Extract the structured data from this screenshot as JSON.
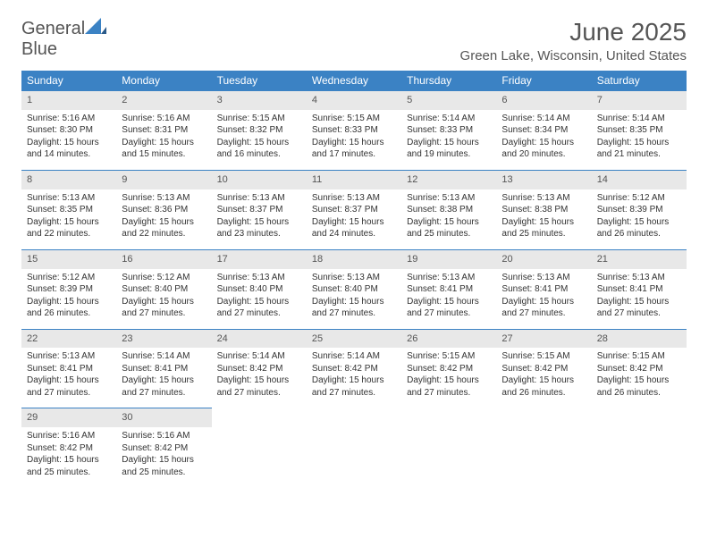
{
  "logo": {
    "text_general": "General",
    "text_blue": "Blue"
  },
  "title": "June 2025",
  "location": "Green Lake, Wisconsin, United States",
  "colors": {
    "header_bg": "#3b82c4",
    "header_fg": "#ffffff",
    "daynum_bg": "#e8e8e8",
    "text": "#333333",
    "page_bg": "#ffffff"
  },
  "weekdays": [
    "Sunday",
    "Monday",
    "Tuesday",
    "Wednesday",
    "Thursday",
    "Friday",
    "Saturday"
  ],
  "weeks": [
    [
      {
        "n": "1",
        "sr": "5:16 AM",
        "ss": "8:30 PM",
        "dl": "15 hours and 14 minutes."
      },
      {
        "n": "2",
        "sr": "5:16 AM",
        "ss": "8:31 PM",
        "dl": "15 hours and 15 minutes."
      },
      {
        "n": "3",
        "sr": "5:15 AM",
        "ss": "8:32 PM",
        "dl": "15 hours and 16 minutes."
      },
      {
        "n": "4",
        "sr": "5:15 AM",
        "ss": "8:33 PM",
        "dl": "15 hours and 17 minutes."
      },
      {
        "n": "5",
        "sr": "5:14 AM",
        "ss": "8:33 PM",
        "dl": "15 hours and 19 minutes."
      },
      {
        "n": "6",
        "sr": "5:14 AM",
        "ss": "8:34 PM",
        "dl": "15 hours and 20 minutes."
      },
      {
        "n": "7",
        "sr": "5:14 AM",
        "ss": "8:35 PM",
        "dl": "15 hours and 21 minutes."
      }
    ],
    [
      {
        "n": "8",
        "sr": "5:13 AM",
        "ss": "8:35 PM",
        "dl": "15 hours and 22 minutes."
      },
      {
        "n": "9",
        "sr": "5:13 AM",
        "ss": "8:36 PM",
        "dl": "15 hours and 22 minutes."
      },
      {
        "n": "10",
        "sr": "5:13 AM",
        "ss": "8:37 PM",
        "dl": "15 hours and 23 minutes."
      },
      {
        "n": "11",
        "sr": "5:13 AM",
        "ss": "8:37 PM",
        "dl": "15 hours and 24 minutes."
      },
      {
        "n": "12",
        "sr": "5:13 AM",
        "ss": "8:38 PM",
        "dl": "15 hours and 25 minutes."
      },
      {
        "n": "13",
        "sr": "5:13 AM",
        "ss": "8:38 PM",
        "dl": "15 hours and 25 minutes."
      },
      {
        "n": "14",
        "sr": "5:12 AM",
        "ss": "8:39 PM",
        "dl": "15 hours and 26 minutes."
      }
    ],
    [
      {
        "n": "15",
        "sr": "5:12 AM",
        "ss": "8:39 PM",
        "dl": "15 hours and 26 minutes."
      },
      {
        "n": "16",
        "sr": "5:12 AM",
        "ss": "8:40 PM",
        "dl": "15 hours and 27 minutes."
      },
      {
        "n": "17",
        "sr": "5:13 AM",
        "ss": "8:40 PM",
        "dl": "15 hours and 27 minutes."
      },
      {
        "n": "18",
        "sr": "5:13 AM",
        "ss": "8:40 PM",
        "dl": "15 hours and 27 minutes."
      },
      {
        "n": "19",
        "sr": "5:13 AM",
        "ss": "8:41 PM",
        "dl": "15 hours and 27 minutes."
      },
      {
        "n": "20",
        "sr": "5:13 AM",
        "ss": "8:41 PM",
        "dl": "15 hours and 27 minutes."
      },
      {
        "n": "21",
        "sr": "5:13 AM",
        "ss": "8:41 PM",
        "dl": "15 hours and 27 minutes."
      }
    ],
    [
      {
        "n": "22",
        "sr": "5:13 AM",
        "ss": "8:41 PM",
        "dl": "15 hours and 27 minutes."
      },
      {
        "n": "23",
        "sr": "5:14 AM",
        "ss": "8:41 PM",
        "dl": "15 hours and 27 minutes."
      },
      {
        "n": "24",
        "sr": "5:14 AM",
        "ss": "8:42 PM",
        "dl": "15 hours and 27 minutes."
      },
      {
        "n": "25",
        "sr": "5:14 AM",
        "ss": "8:42 PM",
        "dl": "15 hours and 27 minutes."
      },
      {
        "n": "26",
        "sr": "5:15 AM",
        "ss": "8:42 PM",
        "dl": "15 hours and 27 minutes."
      },
      {
        "n": "27",
        "sr": "5:15 AM",
        "ss": "8:42 PM",
        "dl": "15 hours and 26 minutes."
      },
      {
        "n": "28",
        "sr": "5:15 AM",
        "ss": "8:42 PM",
        "dl": "15 hours and 26 minutes."
      }
    ],
    [
      {
        "n": "29",
        "sr": "5:16 AM",
        "ss": "8:42 PM",
        "dl": "15 hours and 25 minutes."
      },
      {
        "n": "30",
        "sr": "5:16 AM",
        "ss": "8:42 PM",
        "dl": "15 hours and 25 minutes."
      },
      null,
      null,
      null,
      null,
      null
    ]
  ],
  "labels": {
    "sunrise": "Sunrise:",
    "sunset": "Sunset:",
    "daylight": "Daylight:"
  }
}
